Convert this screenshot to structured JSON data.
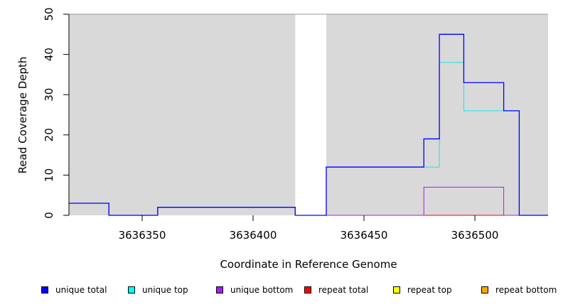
{
  "chart_data": {
    "type": "line",
    "xlabel": "Coordinate in Reference Genome",
    "ylabel": "Read Coverage Depth",
    "xlim": [
      3636317,
      3636533
    ],
    "ylim": [
      0,
      50
    ],
    "x_ticks": [
      3636350,
      3636400,
      3636450,
      3636500
    ],
    "x_tick_labels": [
      "3636350",
      "3636400",
      "3636450",
      "3636500"
    ],
    "y_ticks": [
      0,
      10,
      20,
      30,
      40,
      50
    ],
    "y_tick_labels": [
      "0",
      "10",
      "20",
      "30",
      "40",
      "50"
    ],
    "grid": false,
    "shaded_regions": [
      {
        "x": [
          3636317,
          3636419
        ],
        "color": "#d9d9d9"
      },
      {
        "x": [
          3636433,
          3636533
        ],
        "color": "#d9d9d9"
      }
    ],
    "series": [
      {
        "name": "unique total",
        "color": "#0000ff",
        "step": true,
        "x": [
          3636317,
          3636335,
          3636357,
          3636419,
          3636433,
          3636477,
          3636484,
          3636495,
          3636513,
          3636520,
          3636533
        ],
        "y": [
          3,
          0,
          2,
          0,
          12,
          19,
          45,
          33,
          26,
          0,
          0
        ]
      },
      {
        "name": "unique top",
        "color": "#00e5e5",
        "step": true,
        "x": [
          3636433,
          3636477,
          3636484,
          3636495,
          3636513,
          3636520
        ],
        "y": [
          12,
          12,
          38,
          26,
          26,
          0
        ]
      },
      {
        "name": "unique bottom",
        "color": "#a020f0",
        "step": true,
        "x": [
          3636317,
          3636335,
          3636357,
          3636419,
          3636477,
          3636513,
          3636533
        ],
        "y": [
          3,
          0,
          2,
          0,
          7,
          0,
          0
        ]
      },
      {
        "name": "repeat total",
        "color": "#ff0000",
        "step": true,
        "x": [
          3636433,
          3636533
        ],
        "y": [
          0,
          0
        ]
      },
      {
        "name": "repeat top",
        "color": "#ffff00",
        "step": true,
        "x": [
          3636433,
          3636533
        ],
        "y": [
          0,
          0
        ]
      },
      {
        "name": "repeat bottom",
        "color": "#ffa500",
        "step": true,
        "x": [
          3636477,
          3636513
        ],
        "y": [
          0,
          0
        ]
      }
    ],
    "legend": {
      "placement": "bottom",
      "entries": [
        {
          "label": "unique total",
          "color": "#0000ff"
        },
        {
          "label": "unique top",
          "color": "#00ffff"
        },
        {
          "label": "unique bottom",
          "color": "#a020f0"
        },
        {
          "label": "repeat total",
          "color": "#ff0000"
        },
        {
          "label": "repeat top",
          "color": "#ffff00"
        },
        {
          "label": "repeat bottom",
          "color": "#ffa500"
        }
      ]
    }
  }
}
